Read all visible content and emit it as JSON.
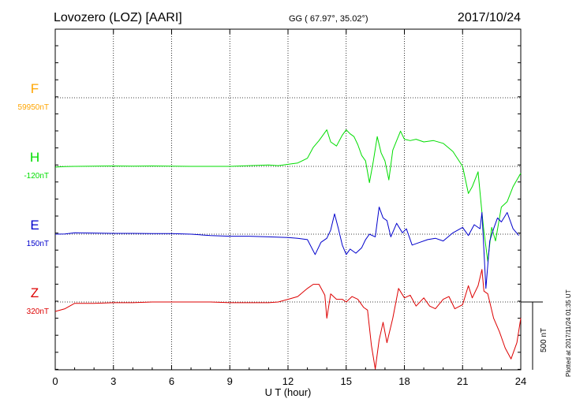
{
  "chart_data": {
    "type": "line",
    "title": "Lovozero (LOZ)  [AARI]",
    "subtitle": "GG ( 67.97°,  35.02°)",
    "date": "2017/10/24",
    "xlabel": "U T (hour)",
    "ylabel": "",
    "xlim": [
      0,
      24
    ],
    "x_ticks": [
      "0",
      "3",
      "6",
      "9",
      "12",
      "15",
      "18",
      "21",
      "24"
    ],
    "grid": true,
    "scale_label": "500 nT",
    "scale_nT": 500,
    "credit": "Plotted at 2017/11/24 01:35 UT",
    "colors": {
      "F": "#ffa500",
      "H": "#00dd00",
      "E": "#0000cc",
      "Z": "#dd0000",
      "axis": "#000000"
    },
    "series": [
      {
        "name": "F",
        "baseline_label": "59950nT",
        "x": [],
        "y": []
      },
      {
        "name": "H",
        "baseline_label": "-120nT",
        "x": [
          0,
          0.5,
          1,
          2,
          3,
          4,
          5,
          6,
          7,
          8,
          9,
          10,
          11,
          11.5,
          12,
          12.5,
          13,
          13.3,
          13.6,
          13.8,
          14,
          14.2,
          14.5,
          14.8,
          15,
          15.2,
          15.4,
          15.6,
          15.8,
          16,
          16.2,
          16.4,
          16.6,
          16.8,
          17,
          17.2,
          17.4,
          17.6,
          17.8,
          18,
          18.3,
          18.6,
          19,
          19.5,
          20,
          20.5,
          21,
          21.3,
          21.5,
          21.8,
          22,
          22.1,
          22.3,
          22.5,
          22.7,
          23,
          23.3,
          23.6,
          24
        ],
        "y": [
          -5,
          -2,
          0,
          2,
          3,
          2,
          3,
          2,
          0,
          0,
          0,
          5,
          10,
          5,
          15,
          25,
          60,
          140,
          190,
          230,
          270,
          180,
          150,
          230,
          270,
          240,
          220,
          160,
          80,
          40,
          -120,
          40,
          220,
          100,
          40,
          -100,
          120,
          190,
          260,
          200,
          190,
          200,
          180,
          190,
          170,
          110,
          0,
          -200,
          -150,
          -40,
          -340,
          -480,
          -700,
          -450,
          -550,
          -300,
          -260,
          -150,
          -50
        ]
      },
      {
        "name": "E",
        "baseline_label": "150nT",
        "x": [
          0,
          0.5,
          1,
          2,
          3,
          4,
          5,
          6,
          7,
          8,
          9,
          10,
          11,
          12,
          12.5,
          13,
          13.4,
          13.7,
          14,
          14.2,
          14.4,
          14.6,
          14.8,
          15,
          15.2,
          15.5,
          15.8,
          16,
          16.2,
          16.5,
          16.7,
          16.9,
          17.1,
          17.3,
          17.6,
          17.9,
          18.1,
          18.4,
          18.8,
          19.2,
          19.6,
          20,
          20.5,
          21,
          21.3,
          21.6,
          21.9,
          22,
          22.2,
          22.4,
          22.6,
          22.8,
          23,
          23.3,
          23.6,
          23.9
        ],
        "y": [
          0,
          2,
          10,
          8,
          6,
          6,
          4,
          4,
          0,
          -10,
          -15,
          -15,
          -20,
          -25,
          -30,
          -40,
          -150,
          -60,
          -30,
          30,
          150,
          40,
          -80,
          -150,
          -110,
          -140,
          -100,
          -40,
          0,
          -20,
          200,
          120,
          100,
          -20,
          80,
          10,
          40,
          -80,
          -60,
          -40,
          -30,
          -50,
          10,
          50,
          -10,
          70,
          40,
          160,
          -400,
          -50,
          40,
          120,
          90,
          160,
          40,
          -10
        ]
      },
      {
        "name": "Z",
        "baseline_label": "320nT",
        "x": [
          0,
          0.5,
          1,
          2,
          3,
          4,
          5,
          6,
          7,
          8,
          9,
          10,
          11,
          11.5,
          12,
          12.5,
          13,
          13.3,
          13.6,
          13.9,
          14,
          14.2,
          14.5,
          14.8,
          15,
          15.3,
          15.6,
          15.9,
          16.1,
          16.3,
          16.5,
          16.7,
          16.9,
          17.1,
          17.4,
          17.7,
          18,
          18.3,
          18.6,
          19,
          19.3,
          19.6,
          20,
          20.3,
          20.6,
          21,
          21.3,
          21.5,
          21.8,
          22,
          22.1,
          22.3,
          22.6,
          22.9,
          23.2,
          23.5,
          23.8,
          24
        ],
        "y": [
          -70,
          -50,
          -10,
          -10,
          -5,
          -5,
          0,
          0,
          0,
          0,
          -5,
          -5,
          -5,
          0,
          20,
          40,
          100,
          130,
          130,
          50,
          -120,
          60,
          20,
          20,
          0,
          40,
          20,
          -40,
          -60,
          -320,
          -640,
          -280,
          -150,
          -300,
          -120,
          100,
          30,
          50,
          -30,
          30,
          -30,
          -50,
          20,
          40,
          -50,
          -20,
          120,
          30,
          120,
          240,
          80,
          60,
          -120,
          -220,
          -340,
          -420,
          -300,
          -120
        ]
      }
    ]
  }
}
